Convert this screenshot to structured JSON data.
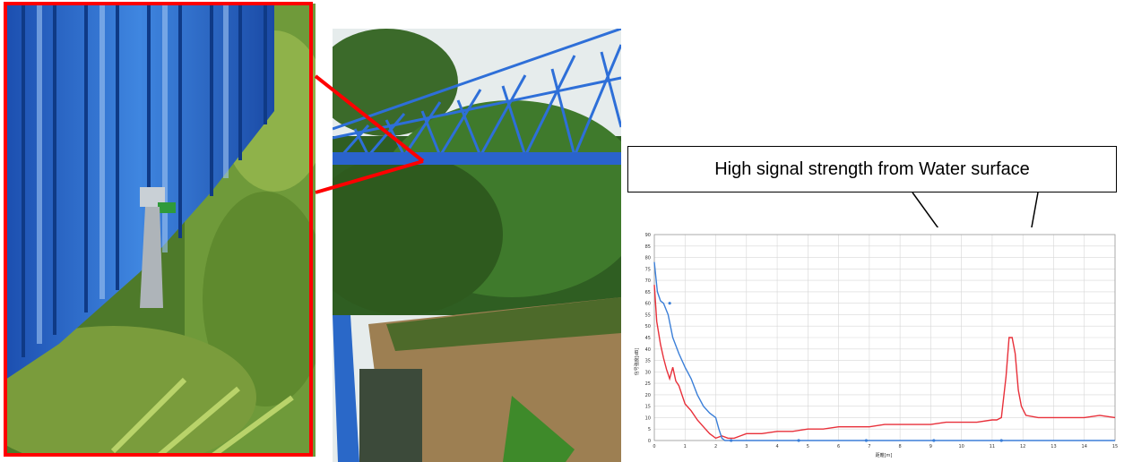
{
  "callout": {
    "text": "High signal strength from Water surface"
  },
  "colors": {
    "highlight_frame": "#ff0000",
    "bridge_blue": "#2a6fd6",
    "series_red": "#e8303a",
    "series_blue": "#3b7fd8"
  },
  "chart_data": {
    "type": "line",
    "title": "",
    "xlabel": "距離[m]",
    "ylabel": "信号強度[dB]",
    "xlim": [
      0,
      15
    ],
    "ylim": [
      0,
      90
    ],
    "x_ticks": [
      0,
      1,
      2,
      3,
      4,
      5,
      6,
      7,
      8,
      9,
      10,
      11,
      12,
      13,
      14,
      15
    ],
    "y_ticks": [
      0,
      5,
      10,
      15,
      20,
      25,
      30,
      35,
      40,
      45,
      50,
      55,
      60,
      65,
      70,
      75,
      80,
      85,
      90
    ],
    "grid": true,
    "series": [
      {
        "color": "#e8303a",
        "x": [
          0,
          0.08,
          0.2,
          0.3,
          0.4,
          0.5,
          0.6,
          0.7,
          0.8,
          0.9,
          1.0,
          1.2,
          1.4,
          1.6,
          1.8,
          2.0,
          2.2,
          2.4,
          2.6,
          2.8,
          3.0,
          3.5,
          4.0,
          4.5,
          5.0,
          5.5,
          6.0,
          6.5,
          7.0,
          7.5,
          8.0,
          8.5,
          9.0,
          9.5,
          10.0,
          10.5,
          11.0,
          11.15,
          11.3,
          11.45,
          11.55,
          11.65,
          11.75,
          11.85,
          11.95,
          12.1,
          12.5,
          13.0,
          13.5,
          14.0,
          14.5,
          15.0
        ],
        "y": [
          68,
          52,
          42,
          36,
          31,
          27,
          32,
          26,
          24,
          20,
          16,
          13,
          9,
          6,
          3,
          1,
          2,
          1,
          1,
          2,
          3,
          3,
          4,
          4,
          5,
          5,
          6,
          6,
          6,
          7,
          7,
          7,
          7,
          8,
          8,
          8,
          9,
          9,
          10,
          28,
          45,
          45,
          38,
          22,
          15,
          11,
          10,
          10,
          10,
          10,
          11,
          10
        ]
      },
      {
        "color": "#3b7fd8",
        "x": [
          0,
          0.1,
          0.2,
          0.3,
          0.45,
          0.6,
          0.8,
          1.0,
          1.2,
          1.4,
          1.6,
          1.8,
          2.0,
          2.1,
          2.2,
          2.3,
          2.5,
          3.0,
          4.0,
          5.0,
          6.0,
          7.0,
          8.0,
          9.0,
          10.0,
          11.0,
          12.0,
          13.0,
          14.0,
          15.0
        ],
        "y": [
          78,
          65,
          61,
          60,
          55,
          45,
          38,
          32,
          27,
          20,
          15,
          12,
          10,
          5,
          1,
          0,
          0,
          0,
          0,
          0,
          0,
          0,
          0,
          0,
          0,
          0,
          0,
          0,
          0,
          0
        ]
      }
    ]
  }
}
